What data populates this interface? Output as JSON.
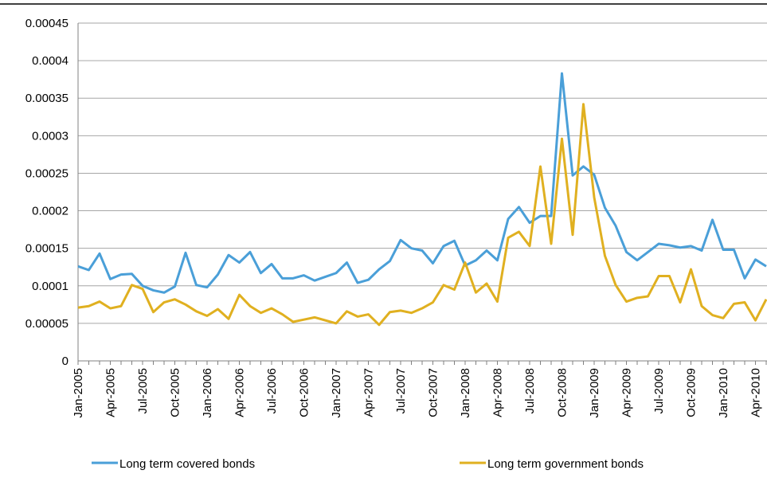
{
  "chart_data": {
    "type": "line",
    "categories": [
      "Jan-2005",
      null,
      null,
      "Apr-2005",
      null,
      null,
      "Jul-2005",
      null,
      null,
      "Oct-2005",
      null,
      null,
      "Jan-2006",
      null,
      null,
      "Apr-2006",
      null,
      null,
      "Jul-2006",
      null,
      null,
      "Oct-2006",
      null,
      null,
      "Jan-2007",
      null,
      null,
      "Apr-2007",
      null,
      null,
      "Jul-2007",
      null,
      null,
      "Oct-2007",
      null,
      null,
      "Jan-2008",
      null,
      null,
      "Apr-2008",
      null,
      null,
      "Jul-2008",
      null,
      null,
      "Oct-2008",
      null,
      null,
      "Jan-2009",
      null,
      null,
      "Apr-2009",
      null,
      null,
      "Jul-2009",
      null,
      null,
      "Oct-2009",
      null,
      null,
      "Jan-2010",
      null,
      null,
      "Apr-2010",
      null
    ],
    "series": [
      {
        "name": "Long term covered bonds",
        "color": "#4a9fd8",
        "values": [
          0.000126,
          0.000121,
          0.000143,
          0.000109,
          0.000115,
          0.000116,
          0.0001,
          9.4e-05,
          9.1e-05,
          9.9e-05,
          0.000144,
          0.000101,
          9.8e-05,
          0.000115,
          0.000141,
          0.000131,
          0.000145,
          0.000117,
          0.000129,
          0.00011,
          0.00011,
          0.000114,
          0.000107,
          0.000112,
          0.000117,
          0.000131,
          0.000104,
          0.000108,
          0.000122,
          0.000133,
          0.000161,
          0.00015,
          0.000147,
          0.00013,
          0.000153,
          0.00016,
          0.000127,
          0.000134,
          0.000147,
          0.000134,
          0.000189,
          0.000205,
          0.000184,
          0.000193,
          0.000193,
          0.000383,
          0.000247,
          0.000259,
          0.000248,
          0.000204,
          0.00018,
          0.000145,
          0.000134,
          0.000145,
          0.000156,
          0.000154,
          0.000151,
          0.000153,
          0.000147,
          0.000188,
          0.000148,
          0.000148,
          0.00011,
          0.000135,
          0.000126
        ]
      },
      {
        "name": "Long term government bonds",
        "color": "#e0b020",
        "values": [
          7.1e-05,
          7.3e-05,
          7.9e-05,
          7e-05,
          7.3e-05,
          0.000101,
          9.6e-05,
          6.5e-05,
          7.8e-05,
          8.2e-05,
          7.5e-05,
          6.6e-05,
          6e-05,
          6.9e-05,
          5.6e-05,
          8.8e-05,
          7.3e-05,
          6.4e-05,
          7e-05,
          6.2e-05,
          5.2e-05,
          5.5e-05,
          5.8e-05,
          5.4e-05,
          5e-05,
          6.6e-05,
          5.9e-05,
          6.2e-05,
          4.8e-05,
          6.5e-05,
          6.7e-05,
          6.4e-05,
          7e-05,
          7.8e-05,
          0.000101,
          9.5e-05,
          0.000131,
          9.1e-05,
          0.000103,
          7.9e-05,
          0.000164,
          0.000172,
          0.000153,
          0.000259,
          0.000156,
          0.000296,
          0.000168,
          0.000342,
          0.000218,
          0.00014,
          0.000101,
          7.9e-05,
          8.4e-05,
          8.6e-05,
          0.000113,
          0.000113,
          7.8e-05,
          0.000122,
          7.3e-05,
          6.1e-05,
          5.7e-05,
          7.6e-05,
          7.8e-05,
          5.4e-05,
          8.2e-05
        ]
      }
    ],
    "ylim": [
      0,
      0.00045
    ],
    "yticks": [
      0,
      5e-05,
      0.0001,
      0.00015,
      0.0002,
      0.00025,
      0.0003,
      0.00035,
      0.0004,
      0.00045
    ],
    "grid": true
  }
}
